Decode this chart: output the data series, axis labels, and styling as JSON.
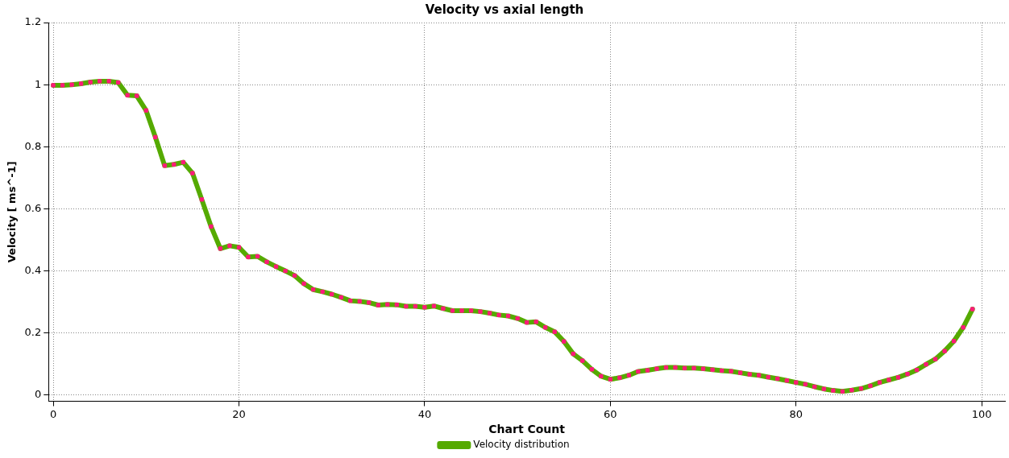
{
  "chart_data": {
    "type": "line",
    "title": "Velocity vs axial length",
    "xlabel": "Chart Count",
    "ylabel": "Velocity [ ms^-1]",
    "x": [
      0,
      1,
      2,
      3,
      4,
      5,
      6,
      7,
      8,
      9,
      10,
      11,
      12,
      13,
      14,
      15,
      16,
      17,
      18,
      19,
      20,
      21,
      22,
      23,
      24,
      25,
      26,
      27,
      28,
      29,
      30,
      31,
      32,
      33,
      34,
      35,
      36,
      37,
      38,
      39,
      40,
      41,
      42,
      43,
      44,
      45,
      46,
      47,
      48,
      49,
      50,
      51,
      52,
      53,
      54,
      55,
      56,
      57,
      58,
      59,
      60,
      61,
      62,
      63,
      64,
      65,
      66,
      67,
      68,
      69,
      70,
      71,
      72,
      73,
      74,
      75,
      76,
      77,
      78,
      79,
      80,
      81,
      82,
      83,
      84,
      85,
      86,
      87,
      88,
      89,
      90,
      91,
      92,
      93,
      94,
      95,
      96,
      97,
      98,
      99
    ],
    "series": [
      {
        "name": "Velocity distribution",
        "color": "#55aa00",
        "values": [
          0.998,
          0.998,
          1.0,
          1.003,
          1.008,
          1.011,
          1.011,
          1.007,
          0.966,
          0.964,
          0.917,
          0.831,
          0.739,
          0.743,
          0.75,
          0.715,
          0.63,
          0.543,
          0.472,
          0.481,
          0.476,
          0.445,
          0.447,
          0.429,
          0.414,
          0.4,
          0.385,
          0.359,
          0.34,
          0.333,
          0.325,
          0.315,
          0.304,
          0.302,
          0.298,
          0.29,
          0.292,
          0.291,
          0.286,
          0.286,
          0.283,
          0.287,
          0.279,
          0.272,
          0.272,
          0.272,
          0.269,
          0.264,
          0.258,
          0.255,
          0.247,
          0.234,
          0.236,
          0.218,
          0.204,
          0.173,
          0.133,
          0.111,
          0.083,
          0.061,
          0.051,
          0.056,
          0.064,
          0.076,
          0.08,
          0.085,
          0.089,
          0.089,
          0.087,
          0.087,
          0.085,
          0.082,
          0.079,
          0.077,
          0.072,
          0.067,
          0.064,
          0.058,
          0.053,
          0.047,
          0.041,
          0.035,
          0.027,
          0.02,
          0.015,
          0.012,
          0.016,
          0.021,
          0.03,
          0.041,
          0.049,
          0.057,
          0.068,
          0.081,
          0.099,
          0.116,
          0.142,
          0.174,
          0.218,
          0.277
        ]
      }
    ],
    "xlim": [
      -0.5,
      102.5
    ],
    "xticks": [
      0,
      20,
      40,
      60,
      80,
      100
    ],
    "ylim": [
      -0.02,
      1.2
    ],
    "yticks": [
      0,
      0.2,
      0.4,
      0.6,
      0.8,
      1,
      1.2
    ],
    "grid": true,
    "legend": "bottom",
    "marker": "square",
    "line_style": "solid"
  }
}
